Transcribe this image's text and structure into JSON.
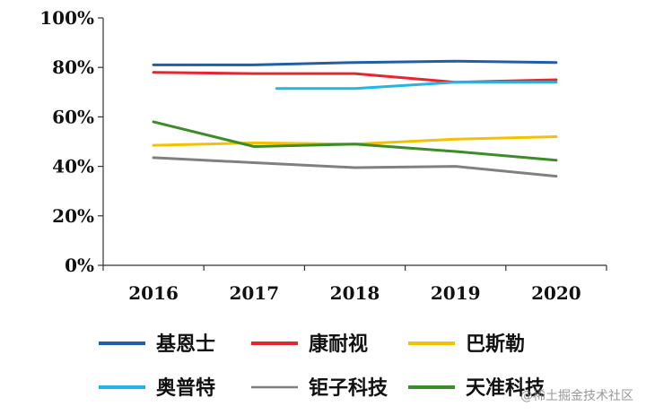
{
  "chart_data": {
    "type": "line",
    "title": "",
    "xlabel": "",
    "ylabel": "",
    "x": [
      "2016",
      "2017",
      "2018",
      "2019",
      "2020"
    ],
    "ylim": [
      0,
      100
    ],
    "yticks": [
      0,
      20,
      40,
      60,
      80,
      100
    ],
    "ytick_labels": [
      "0%",
      "20%",
      "40%",
      "60%",
      "80%",
      "100%"
    ],
    "grid": false,
    "legend_position": "bottom",
    "series": [
      {
        "name": "基恩士",
        "color": "#1f5fa8",
        "values": [
          81,
          81,
          82,
          82.5,
          82
        ]
      },
      {
        "name": "康耐视",
        "color": "#e6262d",
        "values": [
          78,
          77.5,
          77.5,
          74,
          75
        ]
      },
      {
        "name": "巴斯勒",
        "color": "#f2c200",
        "values": [
          48.5,
          49.5,
          49,
          51,
          52
        ]
      },
      {
        "name": "奥普特",
        "color": "#22b5e6",
        "values": [
          null,
          71.5,
          71.5,
          74,
          74
        ]
      },
      {
        "name": "钜子科技",
        "color": "#808080",
        "values": [
          43.5,
          41.5,
          39.5,
          40,
          36
        ]
      },
      {
        "name": "天准科技",
        "color": "#3c8c28",
        "values": [
          58,
          48,
          49,
          46,
          42.5
        ]
      }
    ],
    "series_x_overrides": {
      "奥普特": [
        null,
        2017,
        2018,
        2019,
        2020
      ]
    }
  },
  "watermark": "@稀土掘金技术社区"
}
